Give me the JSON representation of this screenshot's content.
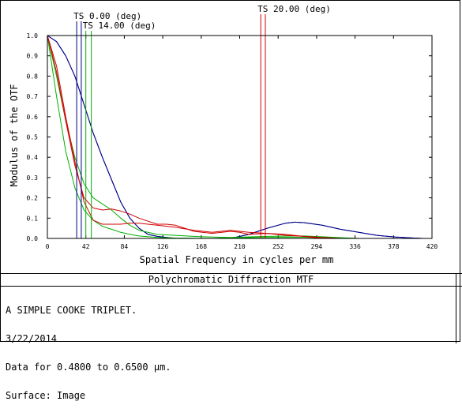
{
  "chart_data": {
    "type": "line",
    "xlabel": "Spatial Frequency in cycles per mm",
    "ylabel": "Modulus of the OTF",
    "xlim": [
      0,
      420
    ],
    "ylim": [
      0,
      1.0
    ],
    "x_ticks": [
      0,
      42,
      84,
      126,
      168,
      210,
      252,
      294,
      336,
      378,
      420
    ],
    "y_ticks": [
      0.0,
      0.1,
      0.2,
      0.3,
      0.4,
      0.5,
      0.6,
      0.7,
      0.8,
      0.9,
      1.0
    ],
    "grid": false,
    "field_markers": [
      {
        "label": "TS 0.00 (deg)",
        "color": "#00008b",
        "x": [
          32,
          37
        ]
      },
      {
        "label": "TS 14.00 (deg)",
        "color": "#00b000",
        "x": [
          42,
          48
        ]
      },
      {
        "label": "TS 20.00 (deg)",
        "color": "#d00000",
        "x": [
          233,
          238
        ]
      }
    ],
    "series": [
      {
        "color": "#00008b",
        "x": [
          0,
          10,
          20,
          30,
          40,
          50,
          60,
          70,
          80,
          90,
          100,
          110,
          120,
          140,
          160,
          180,
          200,
          220,
          240,
          260,
          270,
          280,
          300,
          320,
          340,
          360,
          380,
          400,
          410
        ],
        "y": [
          1.0,
          0.97,
          0.9,
          0.8,
          0.66,
          0.52,
          0.4,
          0.29,
          0.18,
          0.1,
          0.05,
          0.02,
          0.01,
          0.0,
          0.0,
          0.0,
          0.0,
          0.02,
          0.05,
          0.075,
          0.08,
          0.078,
          0.065,
          0.045,
          0.03,
          0.015,
          0.007,
          0.002,
          0.0
        ]
      },
      {
        "color": "#00008b",
        "x": [
          0,
          10,
          20,
          30,
          40,
          50,
          60,
          70,
          80,
          90,
          100,
          110,
          120,
          140,
          160,
          180,
          200,
          220,
          240,
          260,
          270,
          280,
          300,
          320,
          340,
          360,
          380,
          400,
          410
        ],
        "y": [
          1.0,
          0.97,
          0.9,
          0.8,
          0.66,
          0.52,
          0.4,
          0.29,
          0.18,
          0.1,
          0.05,
          0.02,
          0.01,
          0.0,
          0.0,
          0.0,
          0.0,
          0.02,
          0.05,
          0.075,
          0.08,
          0.078,
          0.065,
          0.045,
          0.03,
          0.015,
          0.007,
          0.002,
          0.0
        ]
      },
      {
        "color": "#00b000",
        "x": [
          0,
          10,
          20,
          30,
          40,
          50,
          60,
          70,
          80,
          90,
          100,
          120,
          140,
          160,
          180,
          200,
          240,
          280,
          300,
          320,
          340
        ],
        "y": [
          1.0,
          0.8,
          0.58,
          0.4,
          0.27,
          0.2,
          0.17,
          0.14,
          0.1,
          0.065,
          0.04,
          0.02,
          0.015,
          0.01,
          0.007,
          0.005,
          0.01,
          0.012,
          0.008,
          0.004,
          0.0
        ]
      },
      {
        "color": "#00b000",
        "x": [
          0,
          10,
          20,
          30,
          40,
          50,
          60,
          70,
          80,
          90,
          100,
          120,
          140,
          160,
          180,
          200,
          240,
          280,
          300,
          320,
          340
        ],
        "y": [
          1.0,
          0.7,
          0.43,
          0.25,
          0.14,
          0.09,
          0.06,
          0.045,
          0.03,
          0.02,
          0.012,
          0.005,
          0.002,
          0.001,
          0.0,
          0.003,
          0.005,
          0.006,
          0.004,
          0.002,
          0.0
        ]
      },
      {
        "color": "#d00000",
        "x": [
          0,
          10,
          20,
          30,
          40,
          50,
          60,
          70,
          80,
          90,
          100,
          110,
          120,
          130,
          140,
          150,
          160,
          180,
          200,
          210,
          220,
          240,
          260,
          280,
          300,
          320
        ],
        "y": [
          1.0,
          0.82,
          0.58,
          0.36,
          0.2,
          0.15,
          0.14,
          0.145,
          0.135,
          0.12,
          0.1,
          0.085,
          0.07,
          0.07,
          0.065,
          0.05,
          0.035,
          0.025,
          0.035,
          0.03,
          0.02,
          0.025,
          0.015,
          0.01,
          0.005,
          0.0
        ]
      },
      {
        "color": "#d00000",
        "x": [
          0,
          10,
          20,
          30,
          40,
          50,
          60,
          70,
          80,
          90,
          100,
          110,
          120,
          140,
          160,
          180,
          200,
          210,
          220,
          240,
          260,
          280,
          300
        ],
        "y": [
          1.0,
          0.85,
          0.6,
          0.38,
          0.18,
          0.09,
          0.07,
          0.07,
          0.07,
          0.075,
          0.075,
          0.07,
          0.065,
          0.055,
          0.04,
          0.03,
          0.04,
          0.035,
          0.03,
          0.025,
          0.02,
          0.01,
          0.0
        ]
      }
    ]
  },
  "info_panel": {
    "title": "Polychromatic Diffraction MTF",
    "lines": [
      "A SIMPLE COOKE TRIPLET.",
      "3/22/2014",
      "Data for 0.4800 to 0.6500 µm.",
      "Surface: Image"
    ]
  }
}
